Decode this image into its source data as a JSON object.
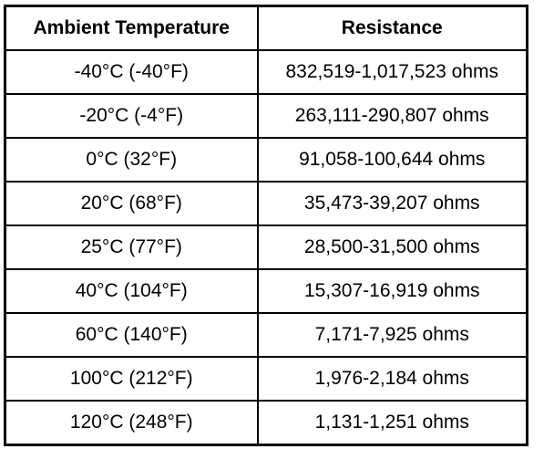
{
  "table": {
    "header": [
      "Ambient Temperature",
      "Resistance"
    ],
    "rows": [
      [
        "-40°C (-40°F)",
        "832,519-1,017,523 ohms"
      ],
      [
        "-20°C (-4°F)",
        "263,111-290,807 ohms"
      ],
      [
        "0°C (32°F)",
        "91,058-100,644 ohms"
      ],
      [
        "20°C (68°F)",
        "35,473-39,207 ohms"
      ],
      [
        "25°C (77°F)",
        "28,500-31,500 ohms"
      ],
      [
        "40°C (104°F)",
        "15,307-16,919 ohms"
      ],
      [
        "60°C (140°F)",
        "7,171-7,925 ohms"
      ],
      [
        "100°C (212°F)",
        "1,976-2,184 ohms"
      ],
      [
        "120°C (248°F)",
        "1,131-1,251 ohms"
      ]
    ]
  }
}
